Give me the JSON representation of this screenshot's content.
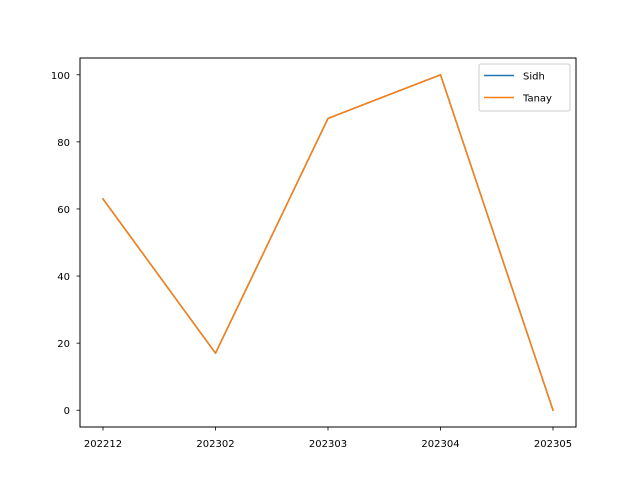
{
  "chart_data": {
    "type": "line",
    "x_categories": [
      "202212",
      "202302",
      "202303",
      "202304",
      "202305"
    ],
    "series": [
      {
        "name": "Sidh",
        "values": [
          63,
          17,
          87,
          100,
          0
        ],
        "color": "#1f77b4"
      },
      {
        "name": "Tanay",
        "values": [
          63,
          17,
          87,
          100,
          0
        ],
        "color": "#ff7f0e"
      }
    ],
    "y_ticks": [
      0,
      20,
      40,
      60,
      80,
      100
    ],
    "ylim": [
      -5,
      105
    ],
    "title": "",
    "xlabel": "",
    "ylabel": "",
    "grid": false,
    "legend_position": "top-right"
  }
}
